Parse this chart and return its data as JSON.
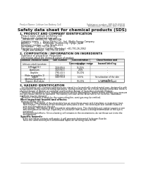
{
  "title": "Safety data sheet for chemical products (SDS)",
  "header_left": "Product Name: Lithium Ion Battery Cell",
  "header_right_line1": "Substance number: SBP-049-00010",
  "header_right_line2": "Established / Revision: Dec.7.2010",
  "section1_title": "1. PRODUCT AND COMPANY IDENTIFICATION",
  "section1_lines": [
    " Product name: Lithium Ion Battery Cell",
    " Product code: Cylindrical-type cell",
    "   SW-B8500, SW-B8500L, SW-B8500A",
    " Company name:      Sanyo Electric Co., Ltd., Mobile Energy Company",
    " Address:      2-21-1  Kannondai, Suonon-City, Hyogo, Japan",
    " Telephone number:    +81-791-26-4111",
    " Fax number:   +81-791-26-4125",
    " Emergency telephone number (Weekday): +81-791-26-2062",
    "   (Night and holidays): +81-791-26-2101"
  ],
  "section2_title": "2. COMPOSITION / INFORMATION ON INGREDIENTS",
  "section2_lines": [
    " Substance or preparation: Preparation",
    " Information about the chemical nature of product:"
  ],
  "table_col_headers": [
    "Common chemical name",
    "CAS number",
    "Concentration /\nConcentration range",
    "Classification and\nhazard labeling"
  ],
  "table_rows": [
    [
      "Lithium cobalt tantalate\n(LiMnCo(O2))",
      "-",
      "30-60%",
      "-"
    ],
    [
      "Iron",
      "7439-89-6",
      "15-25%",
      "-"
    ],
    [
      "Aluminum",
      "7429-90-5",
      "2-6%",
      "-"
    ],
    [
      "Graphite\n(flake or graphite-1)\n(Artificial graphite-1)",
      "7782-42-5\n7782-42-5",
      "10-20%",
      "-"
    ],
    [
      "Copper",
      "7440-50-8",
      "5-15%",
      "Sensitization of the skin\ngroup Ra 2"
    ],
    [
      "Organic electrolyte",
      "-",
      "10-20%",
      "Inflammable liquid"
    ]
  ],
  "section3_title": "3. HAZARD IDENTIFICATION",
  "section3_para": [
    "   For the battery cell, chemical substances are stored in a hermetically sealed metal case, designed to withstand",
    "temperatures during manufacturing-operations. During normal use, as a result, during normal use, there is no",
    "physical danger of ignition or explosion and therefore danger of hazardous materials leakage.",
    "   However, if exposed to a fire, added mechanical shocks, decompress, woken alarms without any measure,",
    "the gas rebase cannot be operated. The battery cell case will be breached at fire extreme, hazardous",
    "materials may be released.",
    "   Moreover, if heated strongly by the surrounding fire, somt gas may be emitted."
  ],
  "section3_bullet1": " Most important hazard and effects:",
  "section3_health": "Human health effects:",
  "section3_health_lines": [
    "   Inhalation: The vapors of the electrolyte has an anesthesia action and stimulates a respiratory tract.",
    "   Skin contact: The release of the electrolyte stimulates a skin. The electrolyte skin contact causes a",
    "   sore and stimulation on the skin.",
    "   Eye contact: The release of the electrolyte stimulates eyes. The electrolyte eye contact causes a sore",
    "   and stimulation on the eye. Especially, a substance that causes a strong inflammation of the eye is",
    "   contained.",
    "   Environmental effects: Since a battery cell remains in the environment, do not throw out it into the",
    "   environment."
  ],
  "section3_bullet2": " Specific hazards:",
  "section3_specific": [
    "   If the electrolyte contacts with water, it will generate detrimental hydrogen fluoride.",
    "   Since the used electrolyte is inflammable liquid, do not bring close to fire."
  ],
  "bg_color": "#ffffff",
  "text_color": "#111111",
  "gray_text": "#666666",
  "table_header_bg": "#e8e8e8"
}
